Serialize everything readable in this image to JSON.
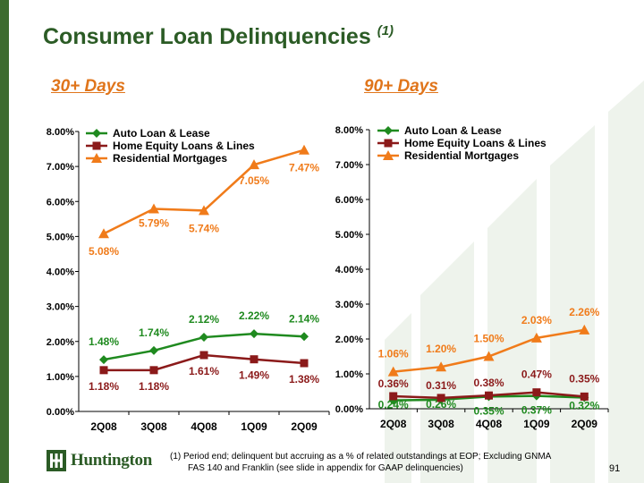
{
  "slide": {
    "title": "Consumer Loan Delinquencies",
    "title_note": "(1)",
    "left_heading": "30+ Days",
    "right_heading": "90+ Days",
    "footnote_line1": "(1)  Period end; delinquent but accruing as a % of related outstandings at EOP; Excluding GNMA",
    "footnote_line2": "FAS 140 and Franklin (see slide in appendix for GAAP delinquencies)",
    "page_number": "91",
    "logo_text": "Huntington"
  },
  "colors": {
    "brand_green": "#2b5b25",
    "accent_orange": "#e0751b",
    "auto": "#1f8a1f",
    "home_equity": "#8b1a1a",
    "mortgage": "#f07b1a"
  },
  "chart_data": [
    {
      "type": "line",
      "title": "30+ Days",
      "categories": [
        "2Q08",
        "3Q08",
        "4Q08",
        "1Q09",
        "2Q09"
      ],
      "ylim": [
        0,
        8
      ],
      "yticks": [
        "0.00%",
        "1.00%",
        "2.00%",
        "3.00%",
        "4.00%",
        "5.00%",
        "6.00%",
        "7.00%",
        "8.00%"
      ],
      "legend": "top-left",
      "series": [
        {
          "name": "Auto Loan & Lease",
          "marker": "diamond",
          "values": [
            1.48,
            1.74,
            2.12,
            2.22,
            2.14
          ],
          "labels": [
            "1.48%",
            "1.74%",
            "2.12%",
            "2.22%",
            "2.14%"
          ]
        },
        {
          "name": "Home Equity Loans & Lines",
          "marker": "square",
          "values": [
            1.18,
            1.18,
            1.61,
            1.49,
            1.38
          ],
          "labels": [
            "1.18%",
            "1.18%",
            "1.61%",
            "1.49%",
            "1.38%"
          ]
        },
        {
          "name": "Residential Mortgages",
          "marker": "triangle",
          "values": [
            5.08,
            5.79,
            5.74,
            7.05,
            7.47
          ],
          "labels": [
            "5.08%",
            "5.79%",
            "5.74%",
            "7.05%",
            "7.47%"
          ]
        }
      ]
    },
    {
      "type": "line",
      "title": "90+ Days",
      "categories": [
        "2Q08",
        "3Q08",
        "4Q08",
        "1Q09",
        "2Q09"
      ],
      "ylim": [
        0,
        8
      ],
      "yticks": [
        "0.00%",
        "1.00%",
        "2.00%",
        "3.00%",
        "4.00%",
        "5.00%",
        "6.00%",
        "7.00%",
        "8.00%"
      ],
      "legend": "top-left",
      "series": [
        {
          "name": "Auto Loan & Lease",
          "marker": "diamond",
          "values": [
            0.24,
            0.26,
            0.35,
            0.37,
            0.32
          ],
          "labels": [
            "0.24%",
            "0.26%",
            "0.35%",
            "0.37%",
            "0.32%"
          ]
        },
        {
          "name": "Home Equity Loans & Lines",
          "marker": "square",
          "values": [
            0.36,
            0.31,
            0.38,
            0.47,
            0.35
          ],
          "labels": [
            "0.36%",
            "0.31%",
            "0.38%",
            "0.47%",
            "0.35%"
          ]
        },
        {
          "name": "Residential Mortgages",
          "marker": "triangle",
          "values": [
            1.06,
            1.2,
            1.5,
            2.03,
            2.26
          ],
          "labels": [
            "1.06%",
            "1.20%",
            "1.50%",
            "2.03%",
            "2.26%"
          ]
        }
      ]
    }
  ]
}
